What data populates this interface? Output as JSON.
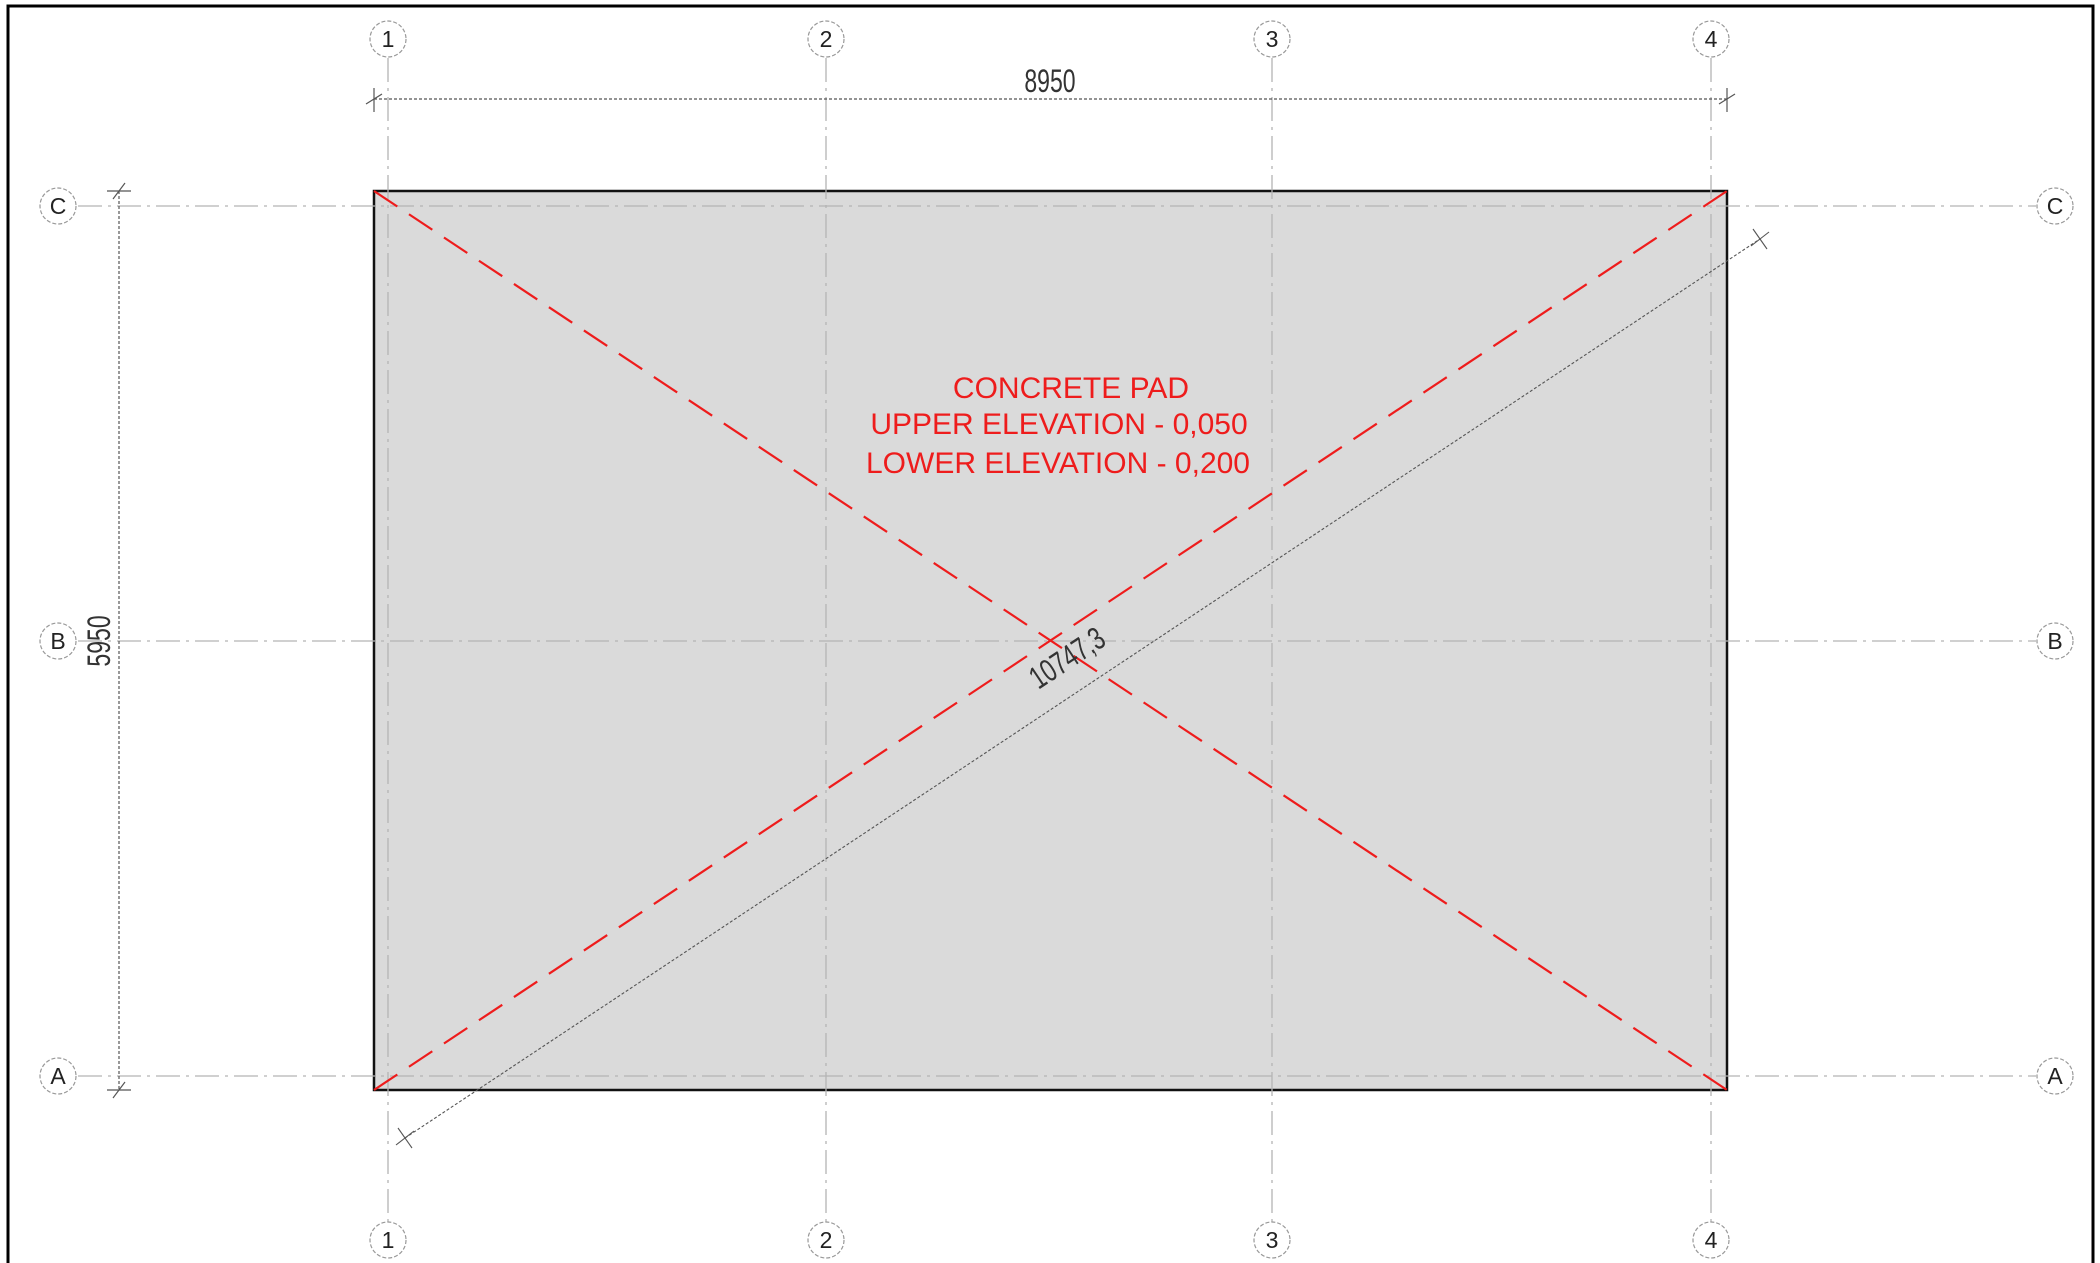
{
  "grid": {
    "columns": [
      "1",
      "2",
      "3",
      "4"
    ],
    "rows": [
      "C",
      "B",
      "A"
    ]
  },
  "dimensions": {
    "horizontal": "8950",
    "vertical": "5950",
    "diagonal": "10747,3"
  },
  "note": {
    "line1": "CONCRETE PAD",
    "line2": "UPPER ELEVATION - 0,050",
    "line3": "LOWER ELEVATION - 0,200"
  },
  "colors": {
    "pad_fill": "#dadada",
    "annotation_red": "#ee1c1c",
    "grid_line": "#b4b4b4",
    "outline": "#111111"
  }
}
